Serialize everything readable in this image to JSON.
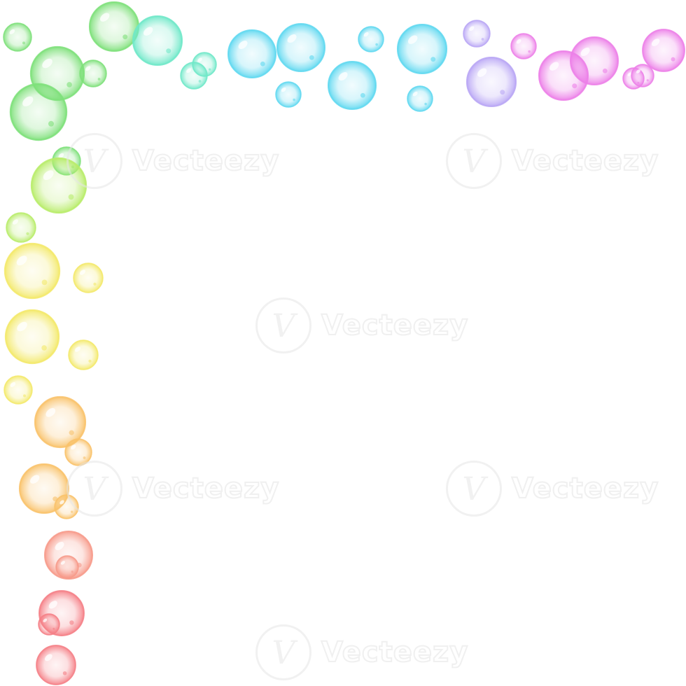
{
  "watermark": {
    "logo_glyph": "V",
    "text": "Vecteezy"
  },
  "palette": {
    "green": "#7ee07a",
    "teal": "#6fe8c8",
    "cyan": "#5fd8f0",
    "lavender": "#b9a6f5",
    "magenta": "#ec7fe8",
    "lime": "#b8ec6a",
    "yellow": "#f3e96a",
    "orange": "#f9c26a",
    "coral": "#f79a8a",
    "red": "#f57f86"
  },
  "icons": [
    "vecteezy-logo-icon",
    "bubble-icon"
  ]
}
